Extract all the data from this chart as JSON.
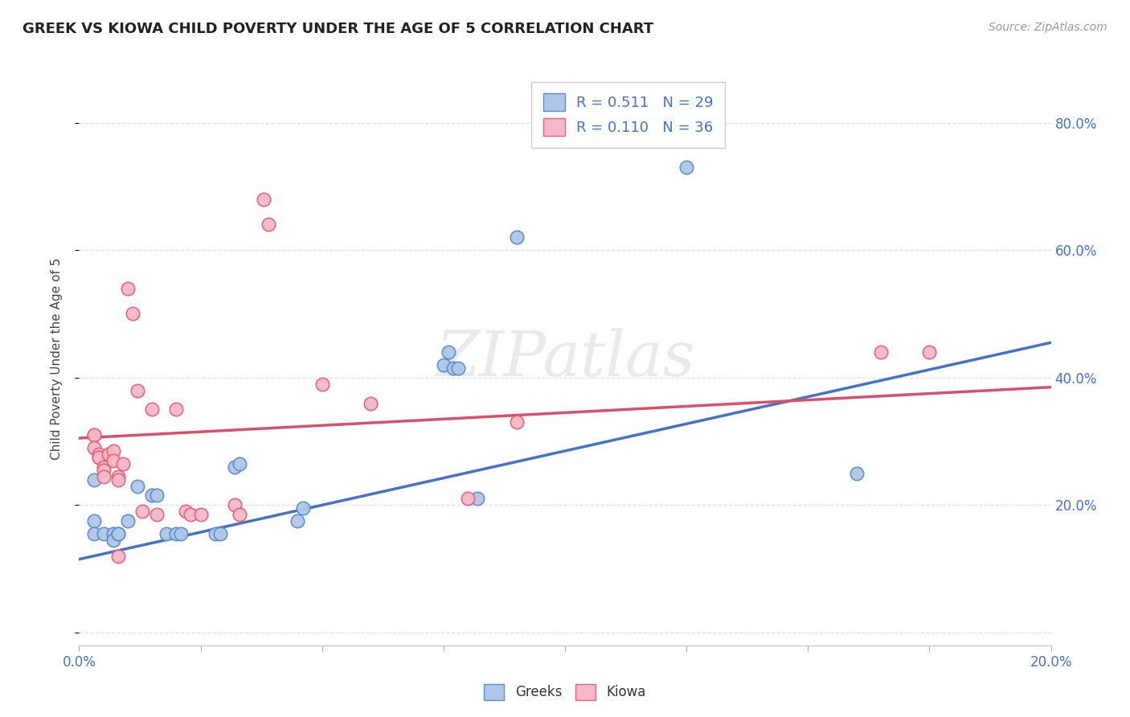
{
  "title": "GREEK VS KIOWA CHILD POVERTY UNDER THE AGE OF 5 CORRELATION CHART",
  "source": "Source: ZipAtlas.com",
  "ylabel": "Child Poverty Under the Age of 5",
  "xlim": [
    0.0,
    0.2
  ],
  "ylim": [
    -0.02,
    0.88
  ],
  "xticks": [
    0.0,
    0.025,
    0.05,
    0.075,
    0.1,
    0.125,
    0.15,
    0.175,
    0.2
  ],
  "xtick_labels": [
    "0.0%",
    "",
    "",
    "",
    "",
    "",
    "",
    "",
    "20.0%"
  ],
  "yticks": [
    0.0,
    0.2,
    0.4,
    0.6,
    0.8
  ],
  "ytick_labels_right": [
    "",
    "20.0%",
    "40.0%",
    "60.0%",
    "80.0%"
  ],
  "background_color": "#ffffff",
  "grid_color": "#e0e0e0",
  "watermark": "ZIPatlas",
  "legend_r1": "R = 0.511   N = 29",
  "legend_r2": "R = 0.110   N = 36",
  "greeks_color": "#aec6e8",
  "kiowa_color": "#f4b8c8",
  "greeks_edge_color": "#5b8dc8",
  "kiowa_edge_color": "#e8607a",
  "greeks_line_color": "#4472c4",
  "kiowa_line_color": "#d9506a",
  "greeks_scatter": [
    [
      0.003,
      0.24
    ],
    [
      0.003,
      0.175
    ],
    [
      0.003,
      0.155
    ],
    [
      0.005,
      0.155
    ],
    [
      0.007,
      0.155
    ],
    [
      0.007,
      0.145
    ],
    [
      0.008,
      0.155
    ],
    [
      0.008,
      0.155
    ],
    [
      0.01,
      0.175
    ],
    [
      0.012,
      0.23
    ],
    [
      0.015,
      0.215
    ],
    [
      0.016,
      0.215
    ],
    [
      0.018,
      0.155
    ],
    [
      0.02,
      0.155
    ],
    [
      0.021,
      0.155
    ],
    [
      0.028,
      0.155
    ],
    [
      0.029,
      0.155
    ],
    [
      0.032,
      0.26
    ],
    [
      0.033,
      0.265
    ],
    [
      0.045,
      0.175
    ],
    [
      0.046,
      0.195
    ],
    [
      0.075,
      0.42
    ],
    [
      0.076,
      0.44
    ],
    [
      0.077,
      0.415
    ],
    [
      0.078,
      0.415
    ],
    [
      0.082,
      0.21
    ],
    [
      0.09,
      0.62
    ],
    [
      0.125,
      0.73
    ],
    [
      0.16,
      0.25
    ]
  ],
  "kiowa_scatter": [
    [
      0.003,
      0.31
    ],
    [
      0.003,
      0.31
    ],
    [
      0.003,
      0.29
    ],
    [
      0.004,
      0.28
    ],
    [
      0.004,
      0.275
    ],
    [
      0.004,
      0.275
    ],
    [
      0.005,
      0.26
    ],
    [
      0.005,
      0.255
    ],
    [
      0.005,
      0.245
    ],
    [
      0.006,
      0.28
    ],
    [
      0.007,
      0.285
    ],
    [
      0.007,
      0.27
    ],
    [
      0.008,
      0.245
    ],
    [
      0.008,
      0.24
    ],
    [
      0.008,
      0.12
    ],
    [
      0.009,
      0.265
    ],
    [
      0.01,
      0.54
    ],
    [
      0.011,
      0.5
    ],
    [
      0.012,
      0.38
    ],
    [
      0.013,
      0.19
    ],
    [
      0.015,
      0.35
    ],
    [
      0.016,
      0.185
    ],
    [
      0.02,
      0.35
    ],
    [
      0.022,
      0.19
    ],
    [
      0.023,
      0.185
    ],
    [
      0.025,
      0.185
    ],
    [
      0.032,
      0.2
    ],
    [
      0.033,
      0.185
    ],
    [
      0.038,
      0.68
    ],
    [
      0.039,
      0.64
    ],
    [
      0.05,
      0.39
    ],
    [
      0.06,
      0.36
    ],
    [
      0.08,
      0.21
    ],
    [
      0.09,
      0.33
    ],
    [
      0.165,
      0.44
    ],
    [
      0.175,
      0.44
    ]
  ],
  "greeks_trendline": [
    [
      0.0,
      0.115
    ],
    [
      0.2,
      0.455
    ]
  ],
  "kiowa_trendline": [
    [
      0.0,
      0.305
    ],
    [
      0.2,
      0.385
    ]
  ]
}
